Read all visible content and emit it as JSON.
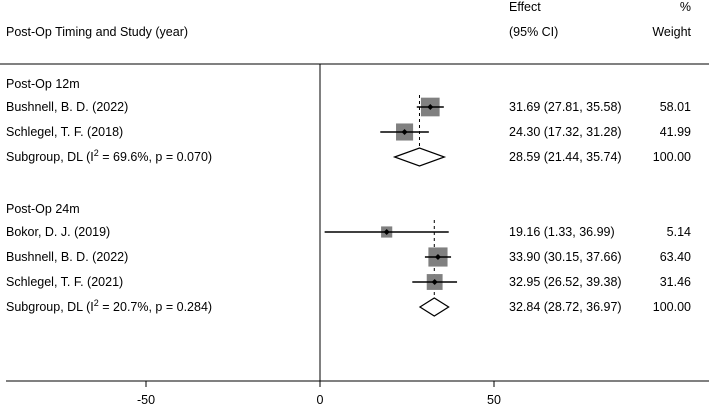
{
  "header": {
    "study_col": "Post-Op Timing and Study (year)",
    "effect_line1": "Effect",
    "effect_line2": "(95% CI)",
    "weight_line1": "%",
    "weight_line2": "Weight"
  },
  "chart_data": {
    "type": "forest",
    "xlim": [
      -92,
      110
    ],
    "xticks": [
      -50,
      0,
      50
    ],
    "reference_line": 0,
    "groups": [
      {
        "label": "Post-Op 12m",
        "pooled_effect": 28.59,
        "rows": [
          {
            "study": "Bushnell, B. D. (2022)",
            "effect": 31.69,
            "lo": 27.81,
            "hi": 35.58,
            "ci_text": "31.69 (27.81, 35.58)",
            "weight": 58.01,
            "weight_text": "58.01"
          },
          {
            "study": "Schlegel, T. F. (2018)",
            "effect": 24.3,
            "lo": 17.32,
            "hi": 31.28,
            "ci_text": "24.30 (17.32, 31.28)",
            "weight": 41.99,
            "weight_text": "41.99"
          }
        ],
        "subgroup": {
          "label_prefix": "Subgroup, DL (I",
          "label_sup": "2",
          "label_suffix": " = 69.6%, p = 0.070)",
          "effect": 28.59,
          "lo": 21.44,
          "hi": 35.74,
          "ci_text": "28.59 (21.44, 35.74)",
          "weight_text": "100.00"
        }
      },
      {
        "label": "Post-Op 24m",
        "pooled_effect": 32.84,
        "rows": [
          {
            "study": "Bokor, D. J. (2019)",
            "effect": 19.16,
            "lo": 1.33,
            "hi": 36.99,
            "ci_text": "19.16 (1.33, 36.99)",
            "weight": 5.14,
            "weight_text": "5.14"
          },
          {
            "study": "Bushnell, B. D. (2022)",
            "effect": 33.9,
            "lo": 30.15,
            "hi": 37.66,
            "ci_text": "33.90 (30.15, 37.66)",
            "weight": 63.4,
            "weight_text": "63.40"
          },
          {
            "study": "Schlegel, T. F. (2021)",
            "effect": 32.95,
            "lo": 26.52,
            "hi": 39.38,
            "ci_text": "32.95 (26.52, 39.38)",
            "weight": 31.46,
            "weight_text": "31.46"
          }
        ],
        "subgroup": {
          "label_prefix": "Subgroup, DL (I",
          "label_sup": "2",
          "label_suffix": " = 20.7%, p = 0.284)",
          "effect": 32.84,
          "lo": 28.72,
          "hi": 36.97,
          "ci_text": "32.84 (28.72, 36.97)",
          "weight_text": "100.00"
        }
      }
    ],
    "colors": {
      "box": "#808080",
      "line": "#000000",
      "pooled_dash": "#000000"
    }
  }
}
